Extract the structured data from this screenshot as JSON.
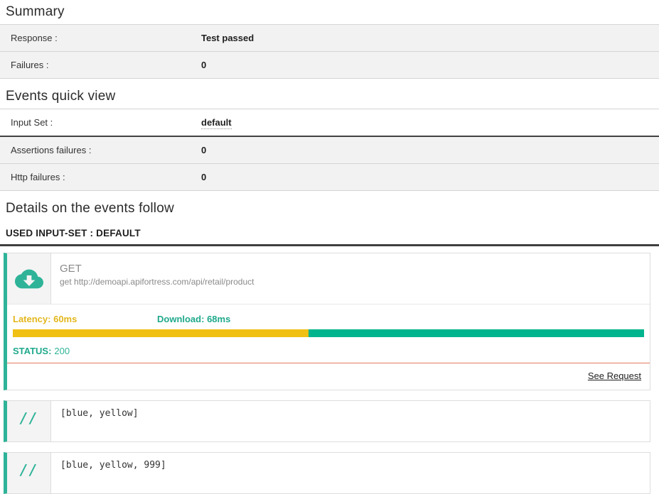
{
  "summary": {
    "title": "Summary",
    "rows": [
      {
        "label": "Response :",
        "value": "Test passed"
      },
      {
        "label": "Failures :",
        "value": "0"
      }
    ]
  },
  "events_quick_view": {
    "title": "Events quick view",
    "input_set": {
      "label": "Input Set :",
      "value": "default"
    },
    "rows": [
      {
        "label": "Assertions failures :",
        "value": "0"
      },
      {
        "label": "Http failures :",
        "value": "0"
      }
    ]
  },
  "details": {
    "title": "Details on the events follow",
    "used_input_set": "USED INPUT-SET : DEFAULT"
  },
  "request_event": {
    "method": "GET",
    "url": "get http://demoapi.apifortress.com/api/retail/product",
    "latency_label": "Latency:",
    "latency_value": "60ms",
    "latency_ms": 60,
    "download_label": "Download:",
    "download_value": "68ms",
    "download_ms": 68,
    "status_label": "STATUS:",
    "status_value": "200",
    "see_request_label": "See Request",
    "icon": "cloud-download-icon"
  },
  "comment_events": [
    {
      "icon": "slashes-comment-icon",
      "text": "[blue, yellow]"
    },
    {
      "icon": "slashes-comment-icon",
      "text": "[blue, yellow, 999]"
    }
  ],
  "colors": {
    "accent": "#2eb398",
    "bar-green": "#00b48d",
    "bar-yellow": "#f0c014",
    "latency-text": "#e3b71d",
    "teal-text": "#1fa98c",
    "salmon": "#e2795b",
    "row-bg": "#f2f2f2",
    "dark-border": "#424242"
  }
}
